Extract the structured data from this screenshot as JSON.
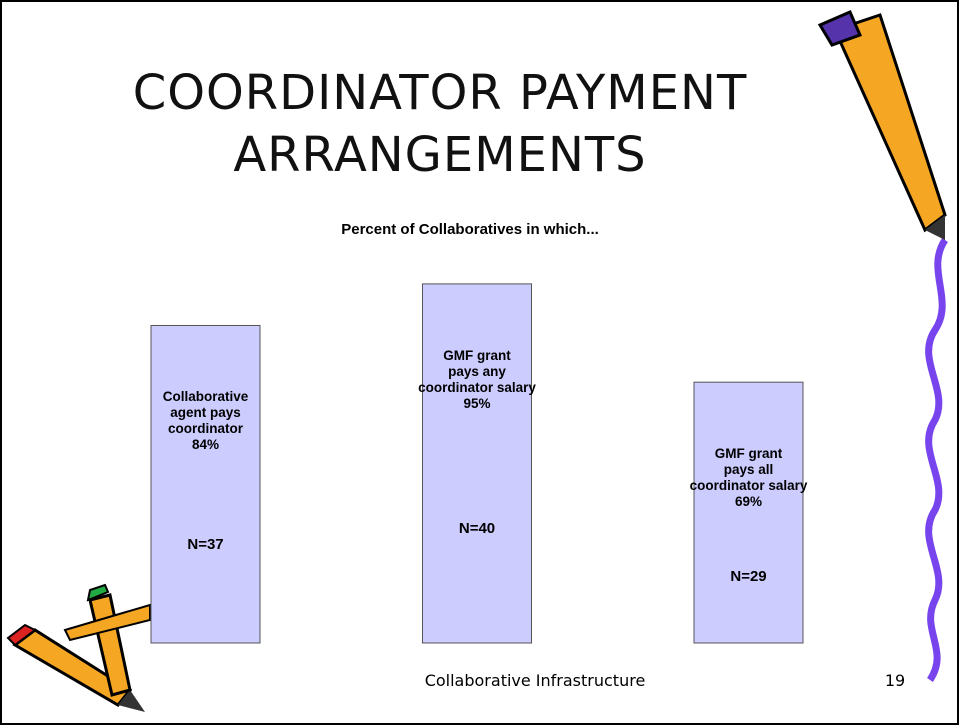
{
  "title": "COORDINATOR PAYMENT\nARRANGEMENTS",
  "chart_data": {
    "type": "bar",
    "title": "Percent of Collaboratives in which...",
    "categories": [
      "Collaborative\nagent pays\ncoordinator",
      "GMF grant\npays any\ncoordinator salary",
      "GMF grant\npays all\ncoordinator salary"
    ],
    "values": [
      84,
      95,
      69
    ],
    "value_labels": [
      "84%",
      "95%",
      "69%"
    ],
    "annotations": [
      "N=37",
      "N=40",
      "N=29"
    ],
    "color": "#ccccff"
  },
  "footer": {
    "text": "Collaborative Infrastructure",
    "page": "19"
  }
}
